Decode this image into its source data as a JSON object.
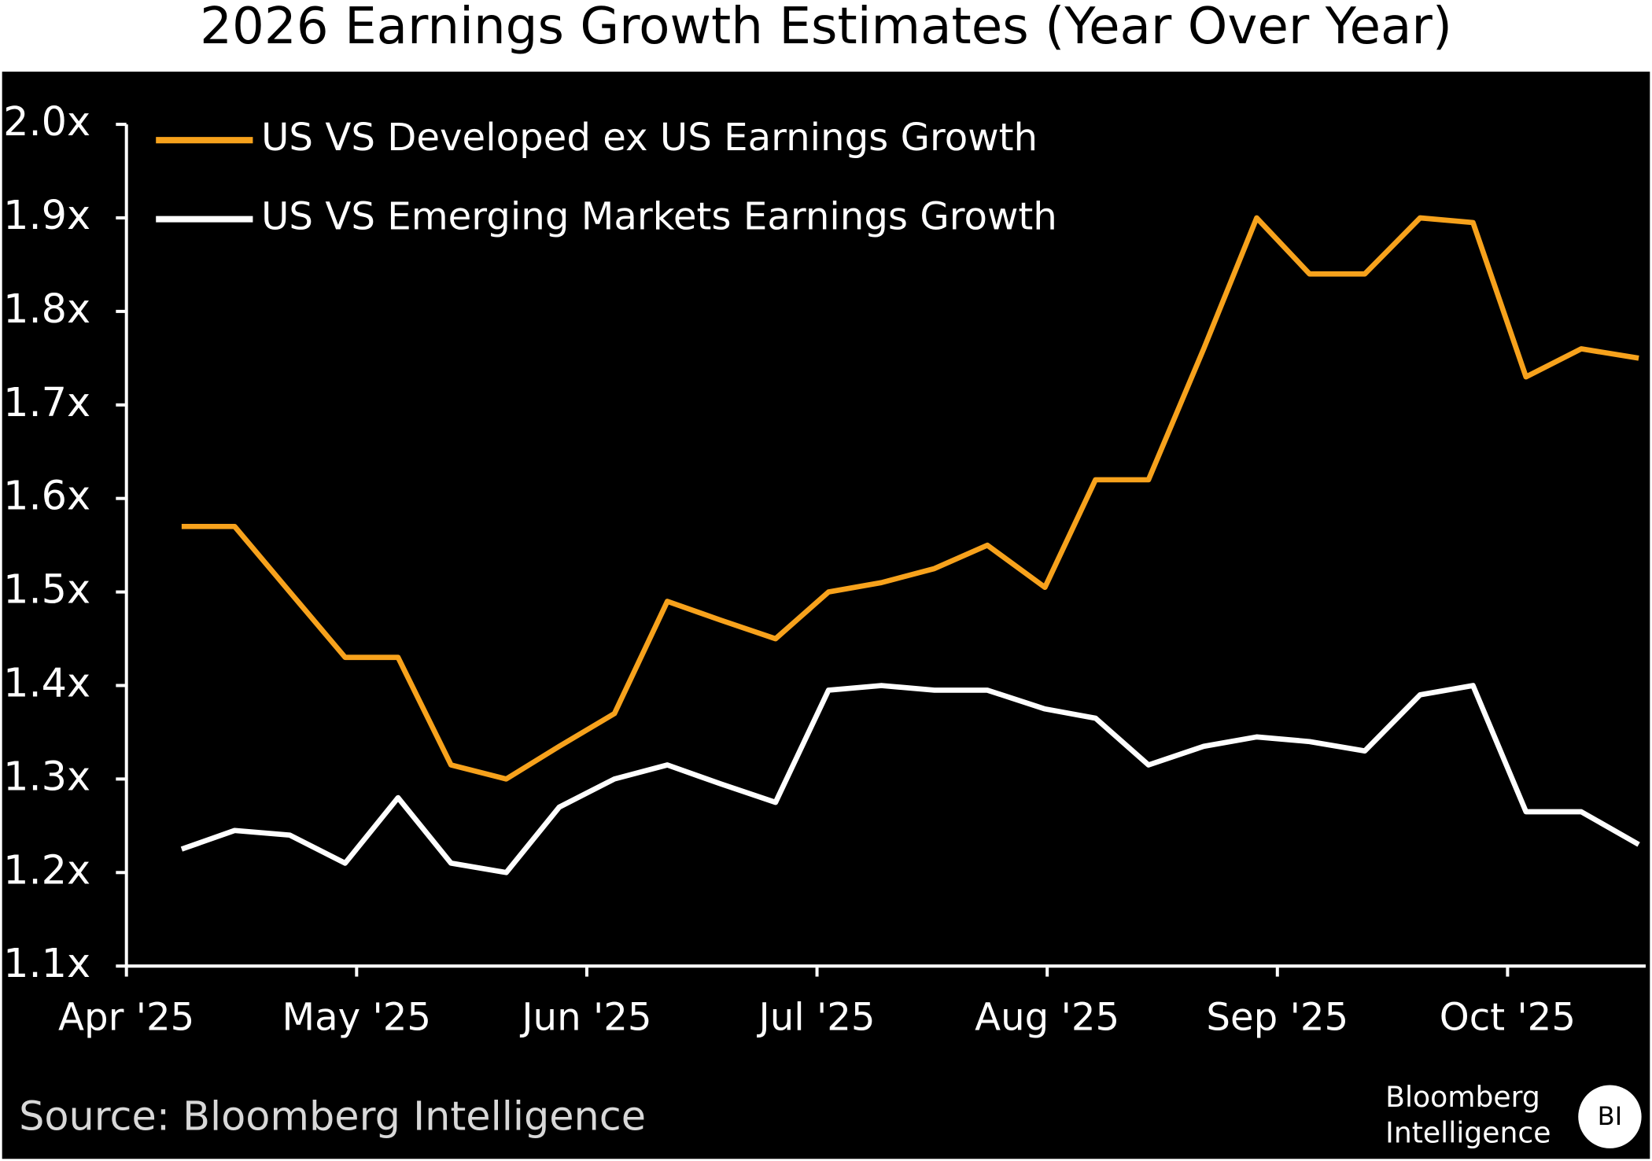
{
  "chart_data": {
    "type": "line",
    "title": "2026 Earnings Growth Estimates (Year Over Year)",
    "x": [
      0.24,
      0.47,
      0.71,
      0.95,
      1.18,
      1.41,
      1.65,
      1.88,
      2.12,
      2.35,
      2.58,
      2.82,
      3.05,
      3.28,
      3.51,
      3.74,
      3.99,
      4.21,
      4.44,
      4.68,
      4.91,
      5.14,
      5.38,
      5.62,
      5.85,
      6.08,
      6.32,
      6.57
    ],
    "series": [
      {
        "name": "US VS Developed ex US Earnings Growth",
        "color": "#f7a21c",
        "values": [
          1.57,
          1.57,
          1.5,
          1.43,
          1.43,
          1.315,
          1.3,
          1.335,
          1.37,
          1.49,
          1.47,
          1.45,
          1.5,
          1.51,
          1.525,
          1.55,
          1.505,
          1.62,
          1.62,
          1.76,
          1.9,
          1.84,
          1.84,
          1.9,
          1.895,
          1.73,
          1.76,
          1.75
        ]
      },
      {
        "name": "US VS Emerging Markets Earnings Growth",
        "color": "#ffffff",
        "values": [
          1.225,
          1.245,
          1.24,
          1.21,
          1.28,
          1.21,
          1.2,
          1.27,
          1.3,
          1.315,
          1.295,
          1.275,
          1.395,
          1.4,
          1.395,
          1.395,
          1.375,
          1.365,
          1.315,
          1.335,
          1.345,
          1.34,
          1.33,
          1.39,
          1.4,
          1.265,
          1.265,
          1.23
        ]
      }
    ],
    "xlim": [
      0,
      6.6
    ],
    "xticks": [
      {
        "value": 0,
        "label": "Apr '25"
      },
      {
        "value": 1,
        "label": "May '25"
      },
      {
        "value": 2,
        "label": "Jun '25"
      },
      {
        "value": 3,
        "label": "Jul '25"
      },
      {
        "value": 4,
        "label": "Aug '25"
      },
      {
        "value": 5,
        "label": "Sep '25"
      },
      {
        "value": 6,
        "label": "Oct '25"
      }
    ],
    "ylim": [
      1.1,
      2.0
    ],
    "yticks": [
      {
        "value": 1.1,
        "label": "1.1x"
      },
      {
        "value": 1.2,
        "label": "1.2x"
      },
      {
        "value": 1.3,
        "label": "1.3x"
      },
      {
        "value": 1.4,
        "label": "1.4x"
      },
      {
        "value": 1.5,
        "label": "1.5x"
      },
      {
        "value": 1.6,
        "label": "1.6x"
      },
      {
        "value": 1.7,
        "label": "1.7x"
      },
      {
        "value": 1.8,
        "label": "1.8x"
      },
      {
        "value": 1.9,
        "label": "1.9x"
      },
      {
        "value": 2.0,
        "label": "2.0x"
      }
    ],
    "grid": false,
    "legend": "top-left",
    "source": "Source: Bloomberg Intelligence",
    "logo": {
      "line1": "Bloomberg",
      "line2": "Intelligence",
      "badge": "BI"
    }
  }
}
